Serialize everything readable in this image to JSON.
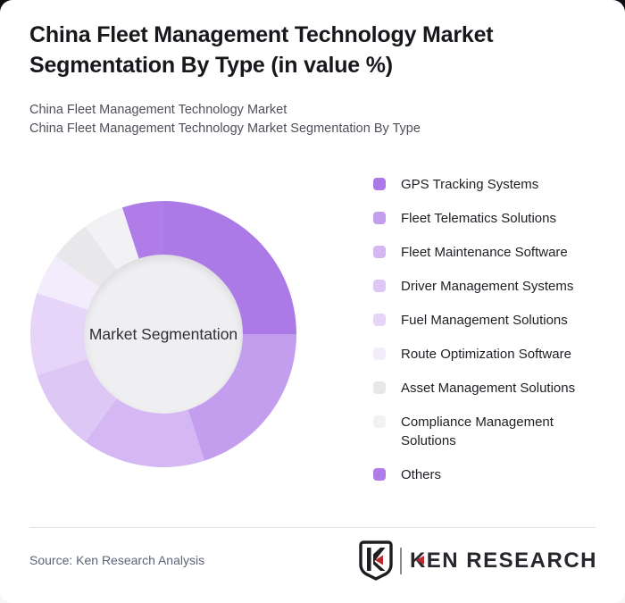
{
  "card": {
    "title": "China Fleet Management Technology Market Segmentation By Type (in value %)",
    "subtitle_line1": "China Fleet Management Technology Market",
    "subtitle_line2": "China Fleet Management Technology Market Segmentation By Type"
  },
  "chart_data": {
    "type": "pie",
    "subtype": "donut",
    "title": "China Fleet Management Technology Market Segmentation By Type (in value %)",
    "center_label": "Market Segmentation",
    "values_unit": "%",
    "start_angle_deg": 0,
    "direction": "clockwise",
    "inner_radius_ratio": 0.59,
    "legend_position": "right",
    "series": [
      {
        "name": "GPS Tracking Systems",
        "value": 25,
        "color": "#ac7ae7"
      },
      {
        "name": "Fleet Telematics Solutions",
        "value": 20,
        "color": "#c39eef"
      },
      {
        "name": "Fleet Maintenance Software",
        "value": 15,
        "color": "#d4b7f3"
      },
      {
        "name": "Driver Management Systems",
        "value": 10,
        "color": "#ddc8f5"
      },
      {
        "name": "Fuel Management Solutions",
        "value": 10,
        "color": "#e6d5f8"
      },
      {
        "name": "Route Optimization Software",
        "value": 5,
        "color": "#f3ecfc"
      },
      {
        "name": "Asset Management Solutions",
        "value": 5,
        "color": "#e8e7e9"
      },
      {
        "name": "Compliance Management Solutions",
        "value": 5,
        "color": "#f2f1f3"
      },
      {
        "name": "Others",
        "value": 5,
        "color": "#b07de8"
      }
    ],
    "hole_color": "#efeff1"
  },
  "footer": {
    "source": "Source: Ken Research Analysis",
    "logo_text": "KEN RESEARCH",
    "logo_accent_color": "#c0272d"
  }
}
